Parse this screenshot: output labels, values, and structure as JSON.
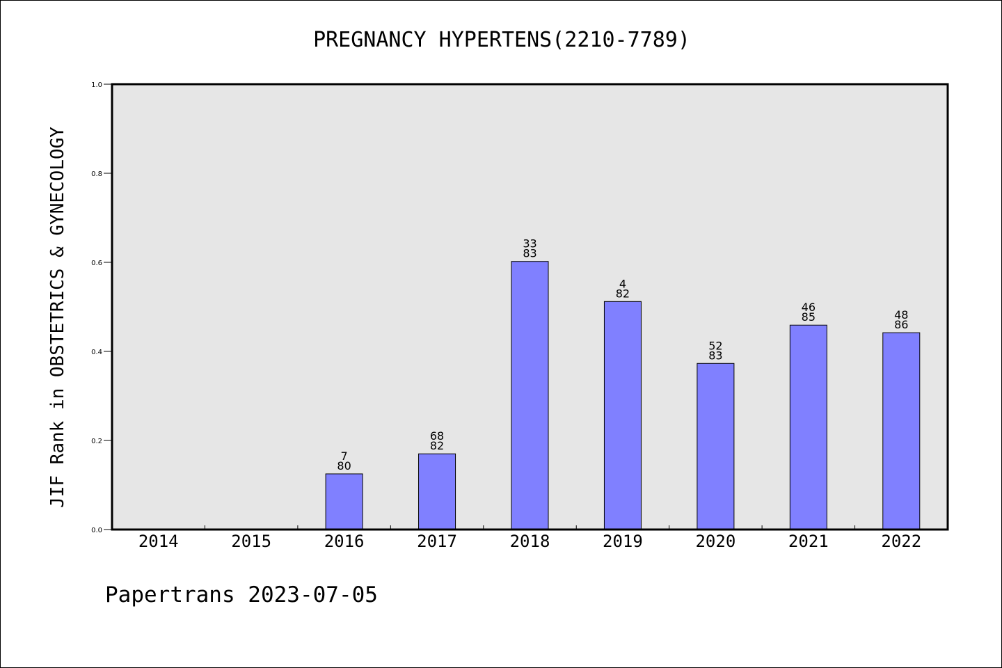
{
  "chart_data": {
    "type": "bar",
    "title": "PREGNANCY HYPERTENS(2210-7789)",
    "ylabel": "JIF Rank in OBSTETRICS & GYNECOLOGY",
    "xlabel": "",
    "categories": [
      "2014",
      "2015",
      "2016",
      "2017",
      "2018",
      "2019",
      "2020",
      "2021",
      "2022"
    ],
    "values": [
      null,
      null,
      0.125,
      0.17,
      0.602,
      0.512,
      0.373,
      0.459,
      0.442
    ],
    "labels_top": [
      "",
      "",
      "7",
      "68",
      "33",
      "4",
      "52",
      "46",
      "48"
    ],
    "labels_bottom": [
      "",
      "",
      "80",
      "82",
      "83",
      "82",
      "83",
      "85",
      "86"
    ],
    "ylim": [
      0,
      1.0
    ],
    "yticks": [
      "0.0",
      "0.2",
      "0.4",
      "0.6",
      "0.8",
      "1.0"
    ],
    "grid": false,
    "colors": {
      "bar": "#8080ff",
      "plot_bg": "#e6e6e6"
    }
  },
  "footer": "Papertrans 2023-07-05"
}
